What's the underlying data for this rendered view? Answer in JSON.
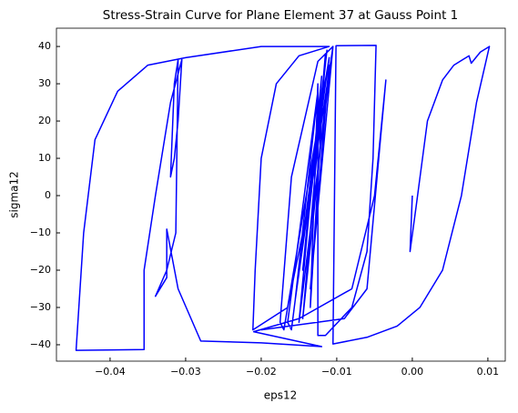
{
  "chart_data": {
    "type": "line",
    "title": "Stress-Strain Curve for Plane Element 37 at Gauss Point 1",
    "x_label": "eps12",
    "y_label": "sigma12",
    "xlim": [
      -0.0471,
      0.0123
    ],
    "ylim": [
      -44.4,
      44.9
    ],
    "xticks": [
      {
        "value": -0.04,
        "label": "−0.04"
      },
      {
        "value": -0.03,
        "label": "−0.03"
      },
      {
        "value": -0.02,
        "label": "−0.02"
      },
      {
        "value": -0.01,
        "label": "−0.01"
      },
      {
        "value": 0,
        "label": "0.00"
      },
      {
        "value": 0.01,
        "label": "0.01"
      }
    ],
    "yticks": [
      {
        "value": -40,
        "label": "−40"
      },
      {
        "value": -30,
        "label": "−30"
      },
      {
        "value": -20,
        "label": "−20"
      },
      {
        "value": -10,
        "label": "−10"
      },
      0,
      10,
      20,
      30,
      40
    ],
    "grid": false,
    "series": [
      {
        "color": "#0000ff",
        "x": [
          0,
          -0.0003,
          0.0005,
          0.002,
          0.004,
          0.0055,
          0.0075,
          0.0078,
          0.009,
          0.0102,
          0.0085,
          0.0065,
          0.004,
          0.001,
          -0.002,
          -0.006,
          -0.0105,
          -0.0103,
          -0.0101,
          -0.0048,
          -0.0052,
          -0.006,
          -0.008,
          -0.0115,
          -0.0125,
          -0.0125,
          -0.0135,
          -0.0115,
          -0.0145,
          -0.011,
          -0.0135,
          -0.0105,
          -0.015,
          -0.012,
          -0.0145,
          -0.0113,
          -0.016,
          -0.0165,
          -0.0125,
          -0.0155,
          -0.011,
          -0.017,
          -0.0175,
          -0.016,
          -0.0125,
          -0.0105,
          -0.0135,
          -0.0165,
          -0.0211,
          -0.0208,
          -0.02,
          -0.018,
          -0.015,
          -0.011,
          -0.02,
          -0.03,
          -0.035,
          -0.039,
          -0.042,
          -0.0435,
          -0.0445,
          -0.0355,
          -0.0355,
          -0.034,
          -0.032,
          -0.0305,
          -0.031,
          -0.0315,
          -0.032,
          -0.0315,
          -0.031,
          -0.0313,
          -0.0325,
          -0.034,
          -0.0325,
          -0.0325,
          -0.031,
          -0.028,
          -0.02,
          -0.012,
          -0.021,
          -0.015,
          -0.008,
          -0.005,
          -0.0035,
          -0.004,
          -0.006,
          -0.009,
          -0.02
        ],
        "values": [
          0,
          -15,
          -3,
          20,
          31,
          35,
          37.5,
          35.5,
          38.5,
          40,
          25,
          0,
          -20,
          -30,
          -35,
          -38,
          -39.8,
          0,
          40.2,
          40.3,
          10,
          -15,
          -30,
          -37.5,
          -37.5,
          30,
          -30,
          38,
          -33,
          35,
          -25,
          40,
          -34,
          32,
          -20,
          39,
          -36,
          -34,
          28,
          -28,
          37,
          -36,
          -34,
          5,
          36,
          40,
          0,
          -30,
          -36,
          -20,
          10,
          30,
          37.5,
          40,
          40,
          37,
          35,
          28,
          15,
          -10,
          -41.5,
          -41.3,
          -20,
          0,
          25,
          36.5,
          20,
          10,
          5,
          30,
          36.5,
          -10,
          -20,
          -27,
          -22,
          -9,
          -25,
          -39,
          -39.5,
          -40.5,
          -36.5,
          -33,
          -25,
          0,
          31,
          20,
          -25,
          -33,
          -36
        ]
      }
    ]
  }
}
